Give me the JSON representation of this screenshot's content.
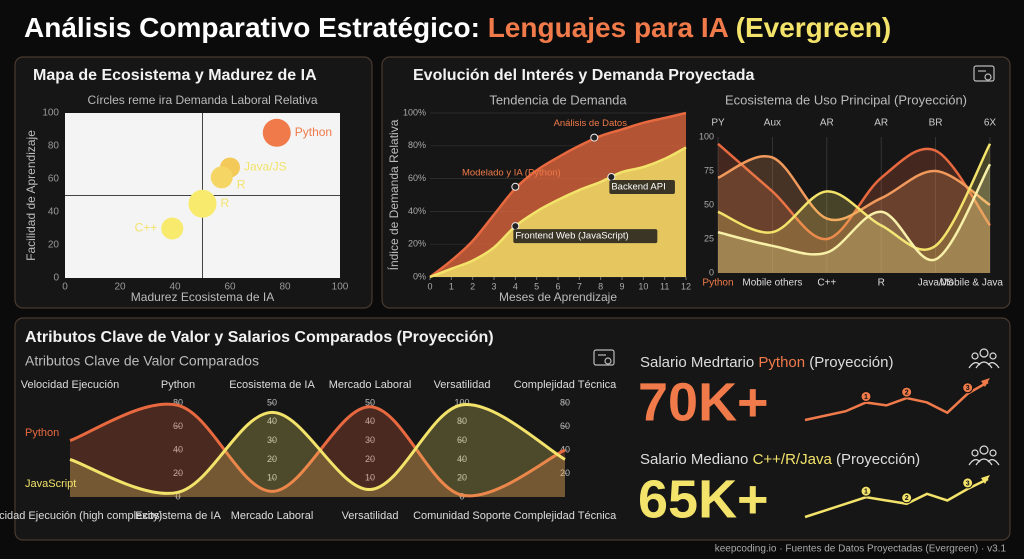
{
  "header": {
    "title_parts": [
      {
        "text": "Análisis Comparativo Estratégico: ",
        "color": "#ffffff"
      },
      {
        "text": "Lenguajes para IA ",
        "color": "#f07a4a"
      },
      {
        "text": "(Evergreen)",
        "color": "#f3e36a"
      }
    ]
  },
  "chart_data": [
    {
      "type": "bubble",
      "panel_title": "Mapa de Ecosistema y Madurez de IA",
      "title": "Círcles reme ira Demanda Laboral Relativa",
      "x_label": "Madurez Ecosistema de IA",
      "y_label": "Facilidad de Aprendizaje",
      "xlim": [
        0,
        100
      ],
      "xticks": [
        0,
        20,
        40,
        60,
        80,
        100
      ],
      "ylim": [
        0,
        100
      ],
      "yticks": [
        0,
        20,
        40,
        60,
        80,
        100
      ],
      "ref_x": 50,
      "ref_y": 50,
      "points": [
        {
          "name": "Python",
          "x": 77,
          "y": 88,
          "size": 14,
          "color": "#f07a4a"
        },
        {
          "name": "Java/JS",
          "x": 60,
          "y": 67,
          "size": 10,
          "color": "#f3c95a"
        },
        {
          "name": "R",
          "x": 57,
          "y": 61,
          "size": 11,
          "color": "#f5d664"
        },
        {
          "name": "R",
          "x": 50,
          "y": 45,
          "size": 14,
          "color": "#f7ea6c"
        },
        {
          "name": "C++",
          "x": 39,
          "y": 30,
          "size": 11,
          "color": "#f7ea6c"
        }
      ]
    },
    {
      "type": "area",
      "panel_title": "Evolución del Interés y Demanda Proyectada",
      "title": "Tendencia de Demanda",
      "x_label": "Meses de Aprendizaje",
      "y_label": "Índice de Demanda Relativa",
      "x": [
        0,
        1,
        2,
        3,
        4,
        5,
        6,
        7,
        8,
        9,
        10,
        11,
        12
      ],
      "xlim": [
        0,
        12
      ],
      "xticks": [
        0,
        1,
        2,
        3,
        4,
        5,
        6,
        7,
        8,
        9,
        10,
        11,
        12
      ],
      "ylim": [
        0,
        100
      ],
      "yticks": [
        {
          "value": 0,
          "label": "0%"
        },
        {
          "value": 20,
          "label": "20%"
        },
        {
          "value": 40,
          "label": "40%"
        },
        {
          "value": 60,
          "label": "60%"
        },
        {
          "value": 80,
          "label": "80%"
        },
        {
          "value": 100,
          "label": "100%"
        }
      ],
      "series": [
        {
          "color": "#e8693f",
          "values": [
            0,
            10,
            22,
            38,
            54,
            65,
            73,
            80,
            86,
            90,
            94,
            97,
            100
          ]
        },
        {
          "color": "#f3e36a",
          "values": [
            0,
            5,
            10,
            18,
            31,
            40,
            47,
            53,
            58,
            64,
            67,
            72,
            79
          ]
        }
      ],
      "annotations": [
        {
          "text": "Análisis de Datos",
          "x": 7.7,
          "y": 85,
          "color": "#f07a4a"
        },
        {
          "text": "Modelado y IA (Python)",
          "x": 4,
          "y": 55,
          "color": "#f07a4a"
        },
        {
          "text": "Backend API",
          "x": 8.5,
          "y": 61,
          "color": "#ffffff"
        },
        {
          "text": "Frontend Web (JavaScript)",
          "x": 4,
          "y": 31,
          "color": "#ffffff"
        }
      ]
    },
    {
      "type": "wave",
      "title": "Ecosistema de Uso Principal (Proyección)",
      "top_labels": [
        "PY",
        "Aux",
        "AR",
        "AR",
        "BR",
        "6X"
      ],
      "categories": [
        "Python",
        "Mobile others",
        "C++",
        "R",
        "Java/JS",
        "Mobile & Java"
      ],
      "ylim": [
        0,
        100
      ],
      "yticks": [
        0,
        25,
        50,
        75,
        100
      ],
      "series": [
        {
          "color": "#e8693f",
          "values": [
            95,
            60,
            25,
            70,
            90,
            35
          ]
        },
        {
          "color": "#f29a5c",
          "values": [
            70,
            85,
            40,
            55,
            75,
            50
          ]
        },
        {
          "color": "#f3e36a",
          "values": [
            45,
            30,
            60,
            35,
            20,
            95
          ]
        },
        {
          "color": "#f8f0a8",
          "values": [
            30,
            20,
            15,
            45,
            10,
            80
          ]
        }
      ]
    },
    {
      "type": "parallel",
      "panel_title": "Atributos Clave de Valor y Salarios Comparados (Proyección)",
      "title": "Atributos Clave de Valor Comparados",
      "axes": [
        {
          "label": "Velocidad Ejecución",
          "lim": [
            0,
            100
          ],
          "ticks": []
        },
        {
          "label": "Python",
          "lim": [
            0,
            80
          ],
          "ticks": [
            0,
            20,
            40,
            60,
            80
          ]
        },
        {
          "label": "Ecosistema de IA",
          "lim": [
            0,
            50
          ],
          "ticks": [
            10,
            20,
            30,
            40,
            50
          ]
        },
        {
          "label": "Mercado Laboral",
          "lim": [
            0,
            50
          ],
          "ticks": [
            10,
            20,
            30,
            40,
            50
          ]
        },
        {
          "label": "Versatilidad",
          "lim": [
            0,
            100
          ],
          "ticks": [
            0,
            20,
            40,
            60,
            80,
            100
          ]
        },
        {
          "label": "Complejidad Técnica",
          "lim": [
            0,
            80
          ],
          "ticks": [
            20,
            40,
            60,
            80
          ]
        }
      ],
      "bottom_labels": [
        "Velocidad Ejecución (high complexity)",
        "Ecosistema de IA",
        "Mercado Laboral",
        "Versatilidad",
        "Comunidad Soporte",
        "Complejidad Técnica"
      ],
      "series": [
        {
          "name": "Python",
          "color": "#e8693f",
          "values": [
            60,
            78,
            3,
            48,
            2,
            40
          ]
        },
        {
          "name": "JavaScript",
          "color": "#f3e36a",
          "values": [
            40,
            4,
            45,
            4,
            98,
            32
          ]
        }
      ]
    },
    {
      "type": "kpi",
      "items": [
        {
          "label_parts": [
            {
              "text": "Salario Medrtario ",
              "color": "#dddddd"
            },
            {
              "text": "Python",
              "color": "#f07a4a"
            },
            {
              "text": " (Proyección)",
              "color": "#dddddd"
            }
          ],
          "value_label": "70K+",
          "color": "#f07a4a",
          "trend": [
            10,
            16,
            22,
            34,
            30,
            40,
            34,
            20,
            46,
            62
          ],
          "markers": [
            {
              "index": 3,
              "label": "1"
            },
            {
              "index": 5,
              "label": "2"
            },
            {
              "index": 8,
              "label": "3"
            }
          ]
        },
        {
          "label_parts": [
            {
              "text": "Salario Mediano ",
              "color": "#dddddd"
            },
            {
              "text": "C++/R/Java",
              "color": "#f3e36a"
            },
            {
              "text": " (Proyección)",
              "color": "#dddddd"
            }
          ],
          "value_label": "65K+",
          "color": "#f3e36a",
          "trend": [
            10,
            18,
            26,
            34,
            30,
            26,
            38,
            30,
            44,
            56
          ],
          "markers": [
            {
              "index": 3,
              "label": "1"
            },
            {
              "index": 5,
              "label": "2"
            },
            {
              "index": 8,
              "label": "3"
            }
          ]
        }
      ]
    }
  ],
  "footer": {
    "text": "keepcoding.io · Fuentes de Datos Proyectadas (Evergreen) · v3.1"
  }
}
